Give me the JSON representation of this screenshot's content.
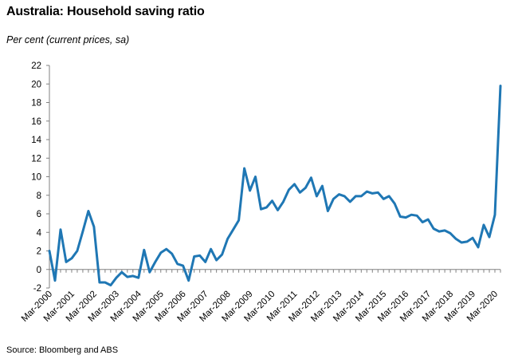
{
  "title": "Australia: Household saving ratio",
  "subtitle": "Per cent (current prices, sa)",
  "source": "Source: Bloomberg and ABS",
  "chart_data": {
    "type": "line",
    "title": "Australia: Household saving ratio",
    "subtitle": "Per cent (current prices, sa)",
    "xlabel": "",
    "ylabel": "",
    "ylim": [
      -2,
      22
    ],
    "yticks": [
      -2,
      0,
      2,
      4,
      6,
      8,
      10,
      12,
      14,
      16,
      18,
      20,
      22
    ],
    "xticks": [
      "Mar-2000",
      "Mar-2001",
      "Mar-2002",
      "Mar-2003",
      "Mar-2004",
      "Mar-2005",
      "Mar-2006",
      "Mar-2007",
      "Mar-2008",
      "Mar-2009",
      "Mar-2010",
      "Mar-2011",
      "Mar-2012",
      "Mar-2013",
      "Mar-2014",
      "Mar-2015",
      "Mar-2016",
      "Mar-2017",
      "Mar-2018",
      "Mar-2019",
      "Mar-2020"
    ],
    "grid": false,
    "line_color": "#1f77b4",
    "series": [
      {
        "values": [
          2.0,
          -1.2,
          4.3,
          0.8,
          1.2,
          2.0,
          4.1,
          6.3,
          4.6,
          -1.4,
          -1.4,
          -1.7,
          -0.9,
          -0.3,
          -0.8,
          -0.7,
          -0.9,
          2.1,
          -0.3,
          0.8,
          1.8,
          2.2,
          1.7,
          0.6,
          0.4,
          -1.2,
          1.4,
          1.5,
          0.8,
          2.2,
          1.0,
          1.6,
          3.3,
          4.3,
          5.3,
          10.9,
          8.5,
          10.0,
          6.5,
          6.7,
          7.4,
          6.4,
          7.3,
          8.6,
          9.2,
          8.3,
          8.8,
          9.9,
          7.9,
          9.0,
          6.3,
          7.6,
          8.1,
          7.9,
          7.3,
          7.9,
          7.9,
          8.4,
          8.2,
          8.3,
          7.6,
          7.9,
          7.1,
          5.7,
          5.6,
          5.9,
          5.8,
          5.1,
          5.4,
          4.4,
          4.1,
          4.2,
          3.9,
          3.3,
          2.9,
          3.0,
          3.4,
          2.4,
          4.8,
          3.5,
          5.9,
          19.8
        ]
      }
    ]
  }
}
